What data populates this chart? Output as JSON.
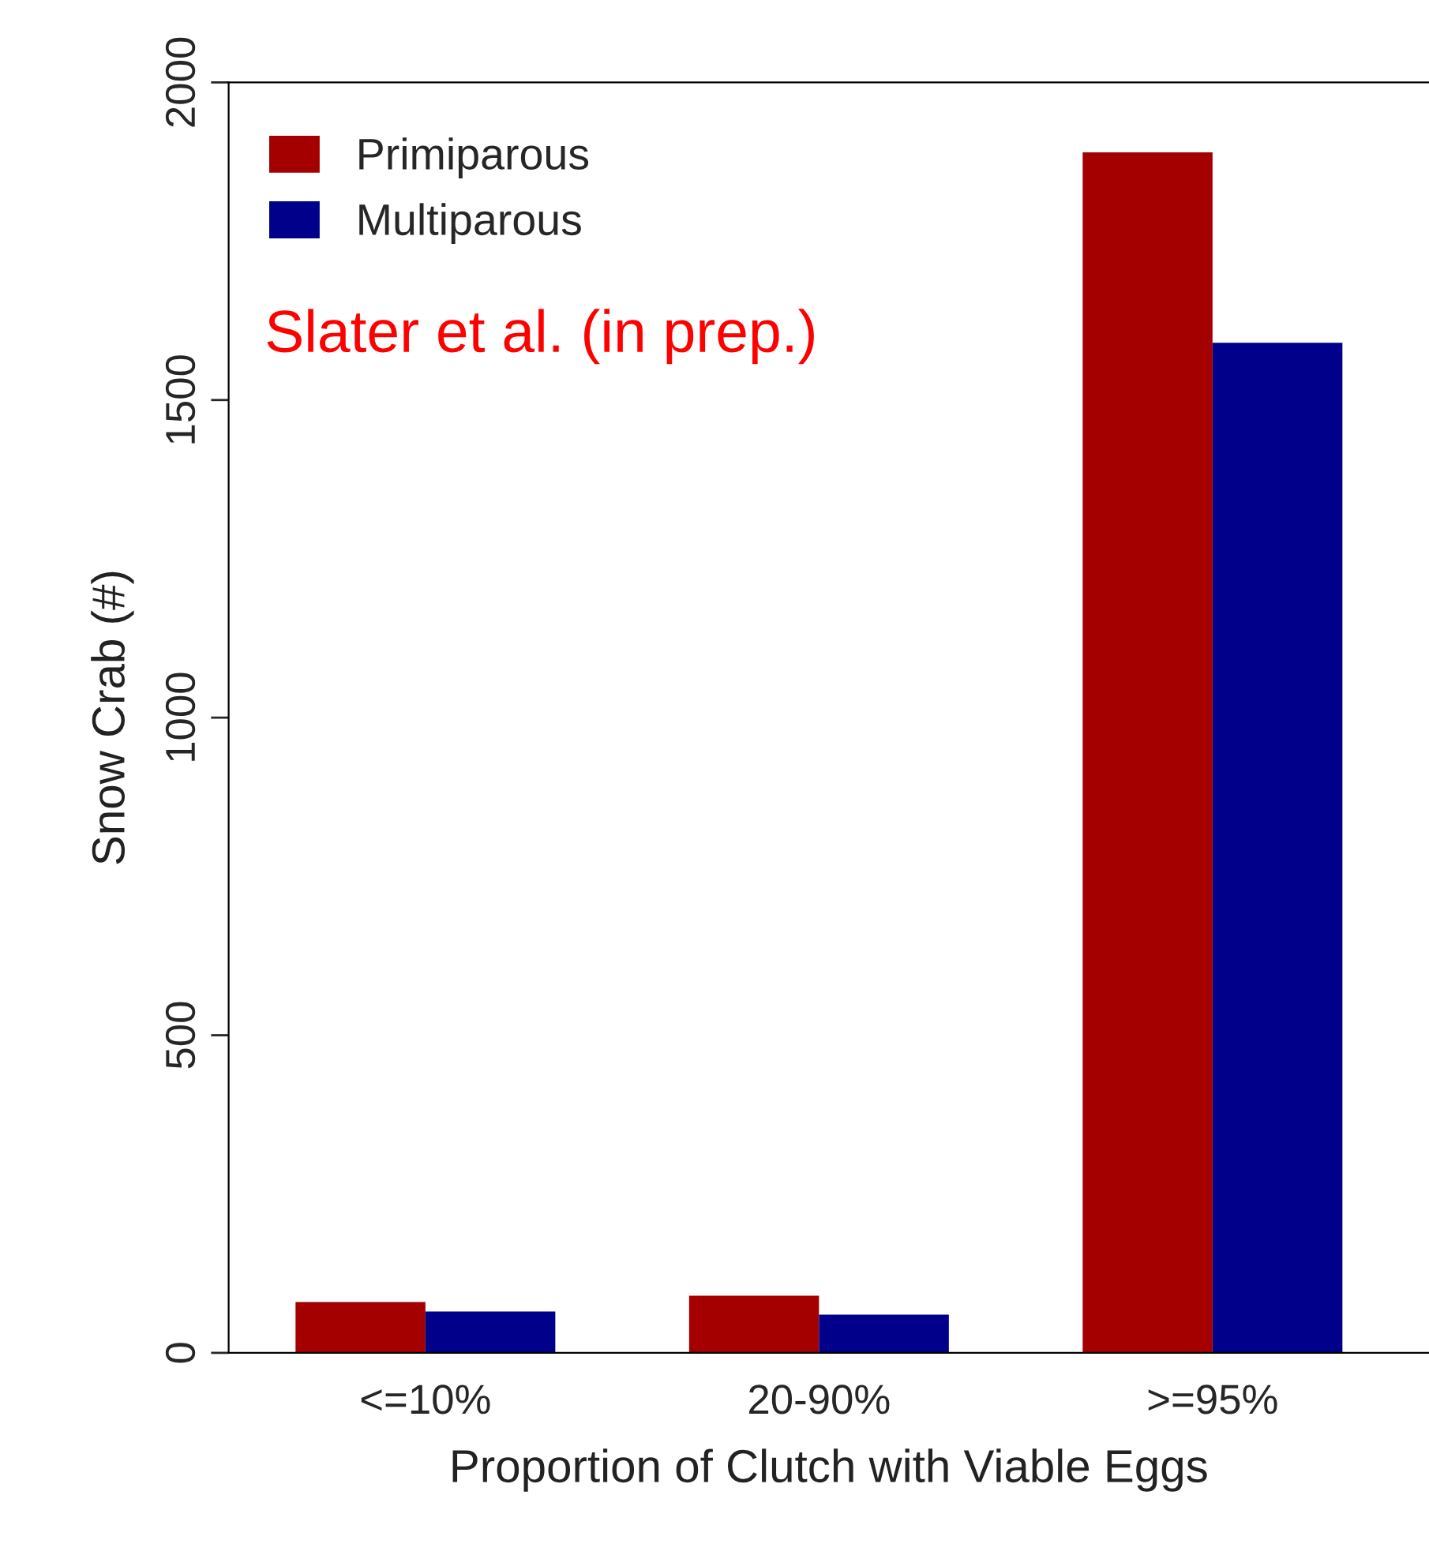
{
  "chart_data": {
    "type": "bar",
    "xlabel": "Proportion of Clutch with Viable Eggs",
    "ylabel": "Snow Crab (#)",
    "categories": [
      "<=10%",
      "20-90%",
      ">=95%"
    ],
    "series": [
      {
        "name": "Primiparous",
        "color": "#a50000",
        "values": [
          80,
          90,
          1890
        ]
      },
      {
        "name": "Multiparous",
        "color": "#00008b",
        "values": [
          65,
          60,
          1590
        ]
      }
    ],
    "ylim": [
      0,
      2000
    ],
    "yticks": [
      0,
      500,
      1000,
      1500,
      2000
    ],
    "annotations": [
      "Slater et al. (in prep.)"
    ],
    "legend": "top left",
    "grid": false
  }
}
